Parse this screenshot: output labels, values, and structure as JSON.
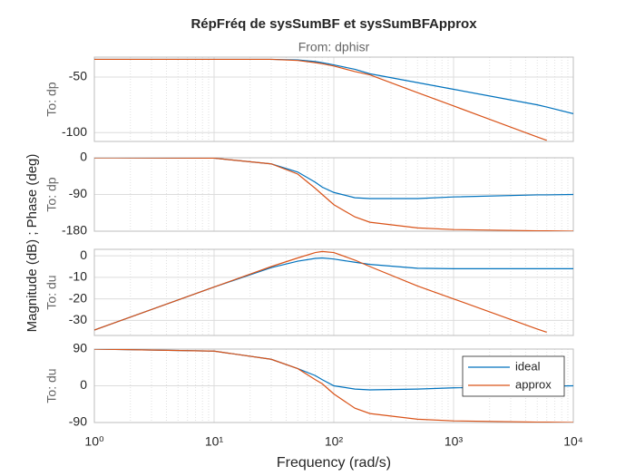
{
  "figure": {
    "title": "RépFréq de sysSumBF et sysSumBFApprox",
    "subtitle": "From: dphisr",
    "ylabel": "Magnitude (dB) ; Phase (deg)",
    "xlabel": "Frequency  (rad/s)"
  },
  "x": [
    1,
    10,
    30,
    50,
    70,
    80,
    100,
    150,
    200,
    500,
    1000,
    5000,
    6000,
    10000
  ],
  "xlim": [
    1,
    10000
  ],
  "xticks": [
    {
      "value": 1,
      "label": "10⁰"
    },
    {
      "value": 10,
      "label": "10¹"
    },
    {
      "value": 100,
      "label": "10²"
    },
    {
      "value": 1000,
      "label": "10³"
    },
    {
      "value": 10000,
      "label": "10⁴"
    }
  ],
  "xscale": "log",
  "grid": true,
  "legend": "upper right",
  "series": [
    {
      "name": "ideal",
      "color": "#0072BD"
    },
    {
      "name": "approx",
      "color": "#D95319"
    }
  ],
  "chart_data": [
    {
      "type": "line",
      "ylabel": "To: dp",
      "ylim": [
        -108,
        -32
      ],
      "yticks": [
        -100,
        -50
      ],
      "series": [
        {
          "values": [
            -34,
            -34,
            -34,
            -34.5,
            -36,
            -37,
            -39,
            -43,
            -47,
            -55,
            -61,
            -75,
            -77,
            -83
          ]
        },
        {
          "values": [
            -34,
            -34,
            -34,
            -35,
            -37,
            -38,
            -40,
            -45,
            -48,
            -64,
            -76,
            -104,
            -107,
            null
          ]
        }
      ]
    },
    {
      "type": "line",
      "ylabel": "To: dp",
      "ylim": [
        -180,
        0
      ],
      "yticks": [
        -180,
        -90,
        0
      ],
      "series": [
        {
          "values": [
            0,
            -1,
            -15,
            -35,
            -60,
            -72,
            -85,
            -98,
            -100,
            -100,
            -96,
            -91,
            -91,
            -90
          ]
        },
        {
          "values": [
            0,
            -1,
            -15,
            -40,
            -75,
            -90,
            -115,
            -145,
            -158,
            -172,
            -176,
            -179,
            -179,
            -180
          ]
        }
      ]
    },
    {
      "type": "line",
      "ylabel": "To: du",
      "ylim": [
        -37,
        3
      ],
      "yticks": [
        -30,
        -20,
        -10,
        0
      ],
      "series": [
        {
          "values": [
            -34.5,
            -14.5,
            -5.5,
            -2.5,
            -1.2,
            -1,
            -1.5,
            -3,
            -4,
            -5.8,
            -6,
            -6,
            -6,
            -6
          ]
        },
        {
          "values": [
            -34.5,
            -14.5,
            -5,
            -1,
            1.5,
            2,
            1.5,
            -2,
            -5,
            -14,
            -20,
            -34,
            -35.5,
            null
          ]
        }
      ]
    },
    {
      "type": "line",
      "ylabel": "To: du",
      "ylim": [
        -90,
        90
      ],
      "yticks": [
        -90,
        0,
        90
      ],
      "show_legend": true,
      "series": [
        {
          "values": [
            90,
            85,
            65,
            42,
            25,
            15,
            0,
            -8,
            -10,
            -8,
            -5,
            -1,
            -1,
            0
          ]
        },
        {
          "values": [
            90,
            85,
            65,
            42,
            15,
            5,
            -20,
            -55,
            -68,
            -82,
            -86,
            -89,
            -89,
            -90
          ]
        }
      ]
    }
  ]
}
